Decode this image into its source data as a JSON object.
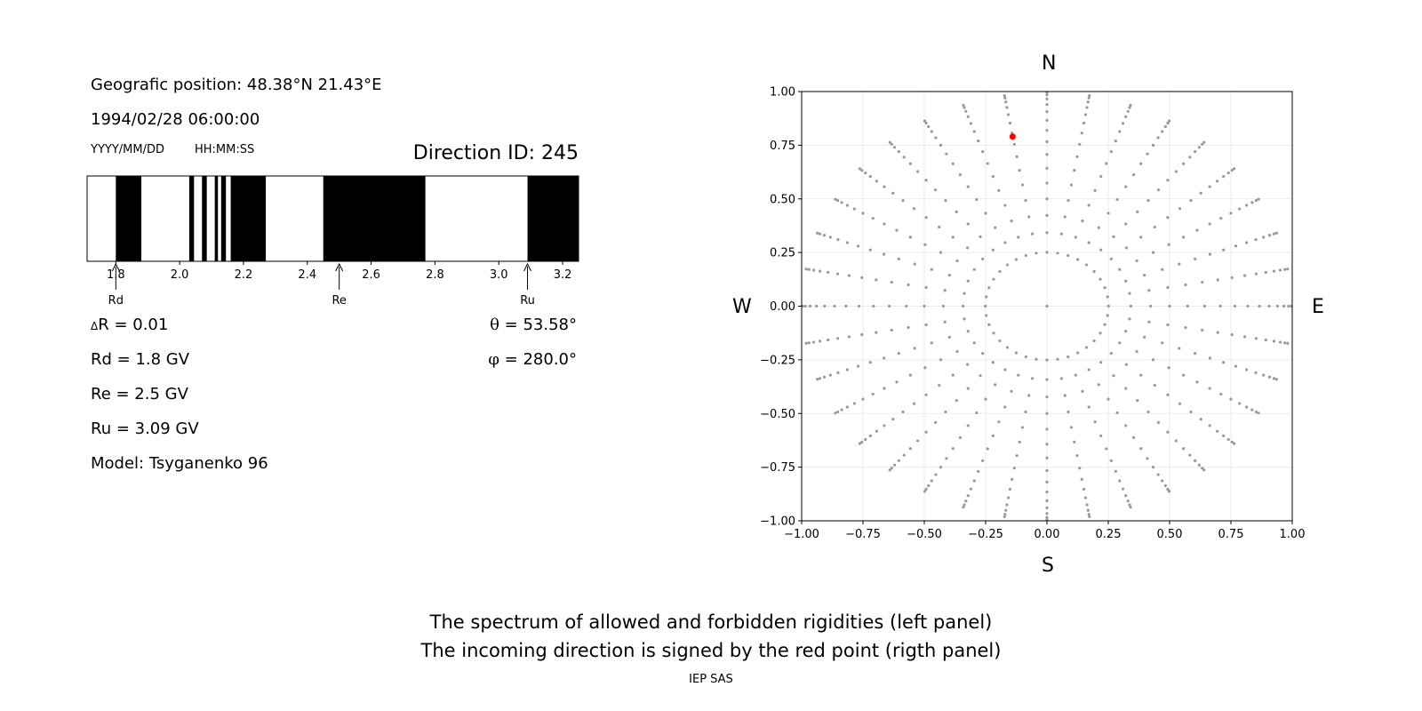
{
  "left_panel": {
    "geo_position": "Geografic position: 48.38°N 21.43°E",
    "datetime": "1994/02/28 06:00:00",
    "date_format": "YYYY/MM/DD",
    "time_format": "HH:MM:SS",
    "direction_id": "Direction ID: 245",
    "delta_r": "R = 0.01",
    "delta_symbol": "Δ",
    "rd": "Rd = 1.8 GV",
    "re": "Re = 2.5 GV",
    "ru": "Ru = 3.09 GV",
    "model": "Model: Tsyganenko 96",
    "theta": "= 53.58°",
    "theta_symbol": "θ",
    "phi": "= 280.0°",
    "phi_symbol": "φ"
  },
  "right_panel": {
    "north": "N",
    "south": "S",
    "west": "W",
    "east": "E"
  },
  "captions": {
    "line1": "The spectrum of allowed and forbidden rigidities (left panel)",
    "line2": "The incoming direction is signed by the red point (rigth panel)",
    "footer": "IEP SAS"
  },
  "colors": {
    "forbidden": "#000000",
    "allowed": "#ffffff",
    "grid_points": "#999999",
    "direction_point": "#ff0000"
  },
  "chart_data": [
    {
      "type": "bar",
      "xlim": [
        1.71,
        3.25
      ],
      "xticks": [
        1.8,
        2.0,
        2.2,
        2.4,
        2.6,
        2.8,
        3.0,
        3.2
      ],
      "xtick_labels": [
        "1.8",
        "2.0",
        "2.2",
        "2.4",
        "2.6",
        "2.8",
        "3.0",
        "3.2"
      ],
      "forbidden_bands": [
        [
          1.8,
          1.88
        ],
        [
          2.03,
          2.045
        ],
        [
          2.07,
          2.085
        ],
        [
          2.11,
          2.12
        ],
        [
          2.13,
          2.145
        ],
        [
          2.16,
          2.27
        ],
        [
          2.45,
          2.77
        ],
        [
          3.09,
          3.25
        ]
      ],
      "markers": [
        {
          "label": "Rd",
          "value": 1.8
        },
        {
          "label": "Re",
          "value": 2.5
        },
        {
          "label": "Ru",
          "value": 3.09
        }
      ]
    },
    {
      "type": "scatter",
      "xlim": [
        -1.0,
        1.0
      ],
      "ylim": [
        -1.0,
        1.0
      ],
      "xticks": [
        -1.0,
        -0.75,
        -0.5,
        -0.25,
        0.0,
        0.25,
        0.5,
        0.75,
        1.0
      ],
      "yticks": [
        -1.0,
        -0.75,
        -0.5,
        -0.25,
        0.0,
        0.25,
        0.5,
        0.75,
        1.0
      ],
      "xtick_labels": [
        "−1.00",
        "−0.75",
        "−0.50",
        "−0.25",
        "0.00",
        "0.25",
        "0.50",
        "0.75",
        "1.00"
      ],
      "ytick_labels": [
        "−1.00",
        "−0.75",
        "−0.50",
        "−0.25",
        "0.00",
        "0.25",
        "0.50",
        "0.75",
        "1.00"
      ],
      "grid": true,
      "grid_pattern": {
        "azimuth_step_deg": 10,
        "zenith_step_deg": 5,
        "zenith_max_deg": 85,
        "inner_ring_zenith_deg": 15,
        "inner_ring_azimuth_step_deg": 10,
        "projection": "sin(zenith)"
      },
      "highlight_point": {
        "x": -0.14,
        "y": 0.79
      }
    }
  ]
}
